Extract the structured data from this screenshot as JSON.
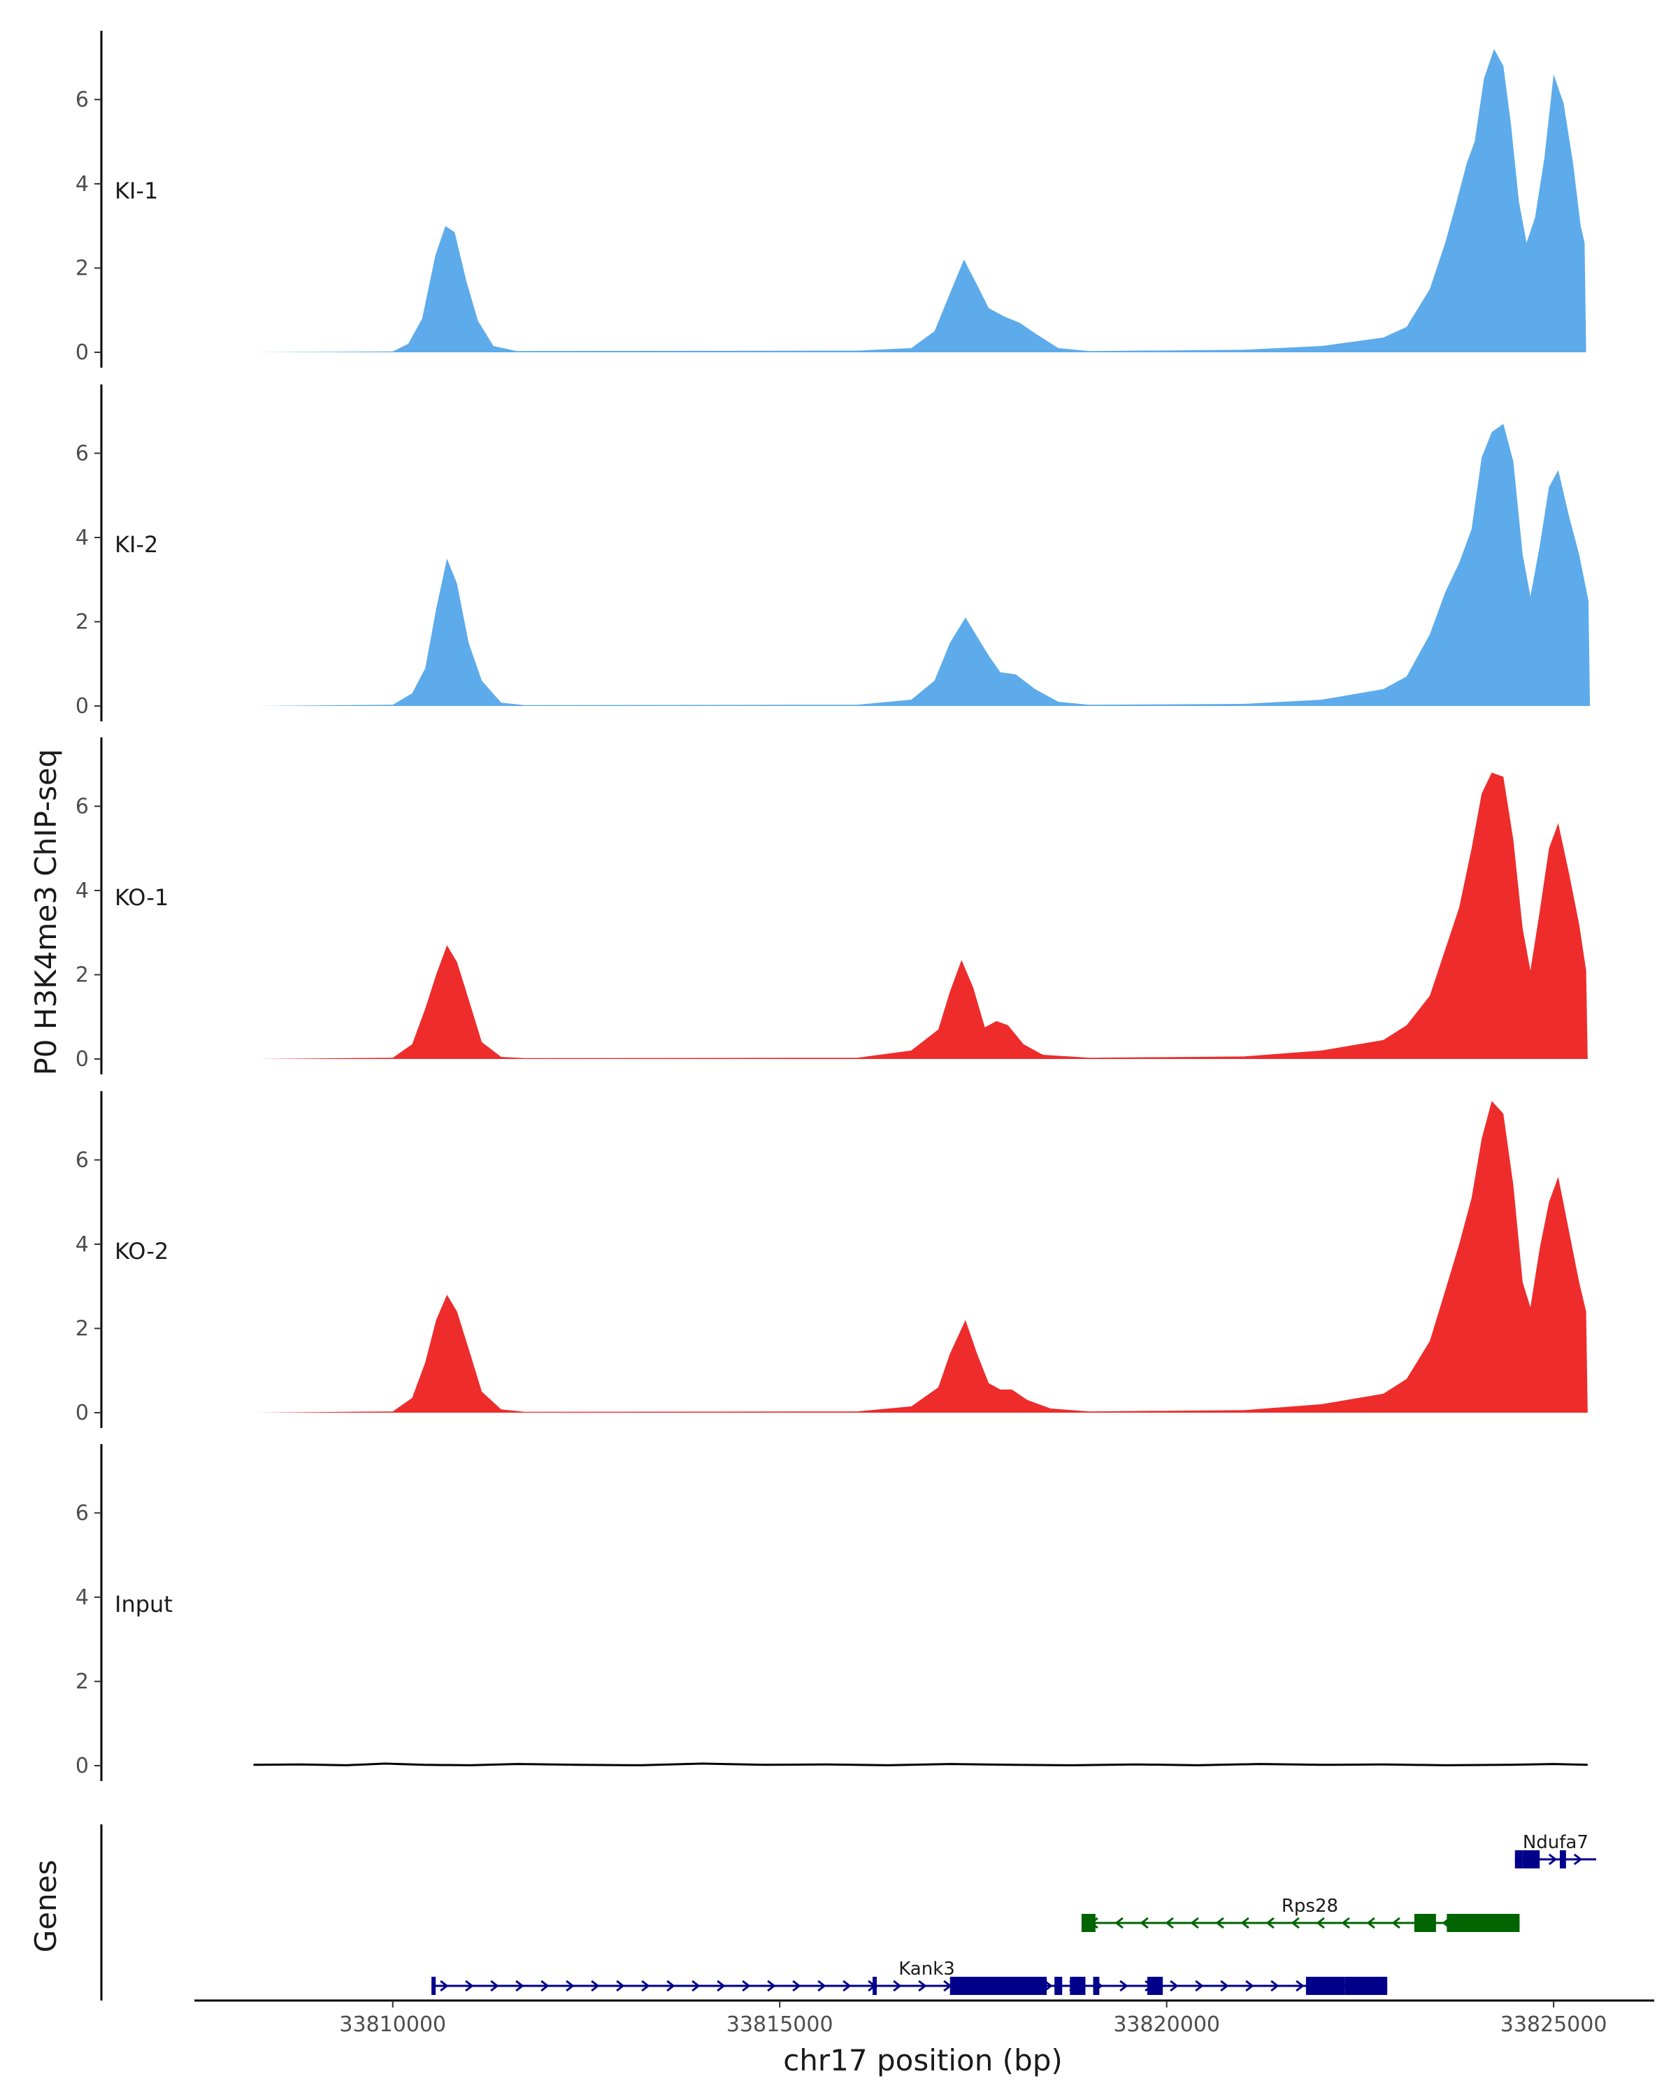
{
  "chart_data": {
    "type": "area",
    "ylabel": "P0 H3K4me3 ChIP-seq",
    "xlabel": "chr17 position (bp)",
    "xlim": [
      33807400,
      33826300
    ],
    "x_ticks": [
      33810000,
      33815000,
      33820000,
      33825000
    ],
    "x_tick_labels": [
      "33810000",
      "33815000",
      "33820000",
      "33825000"
    ],
    "ylim": [
      0,
      7.6
    ],
    "y_ticks": [
      0,
      2,
      4,
      6
    ],
    "y_tick_labels": [
      "0",
      "2",
      "4",
      "6"
    ],
    "colors": {
      "KI": "#5dabeb",
      "KO": "#ee2c2c",
      "Input": "#000000",
      "gene_plus": "#00008b",
      "gene_minus": "#006400"
    },
    "tracks": [
      {
        "name": "KI-1",
        "color": "#5dabeb",
        "points": [
          [
            33808200,
            0
          ],
          [
            33810000,
            0.02
          ],
          [
            33810200,
            0.2
          ],
          [
            33810380,
            0.8
          ],
          [
            33810550,
            2.3
          ],
          [
            33810680,
            3.0
          ],
          [
            33810800,
            2.85
          ],
          [
            33810950,
            1.7
          ],
          [
            33811100,
            0.75
          ],
          [
            33811300,
            0.15
          ],
          [
            33811600,
            0.03
          ],
          [
            33816000,
            0.04
          ],
          [
            33816700,
            0.1
          ],
          [
            33817000,
            0.5
          ],
          [
            33817200,
            1.4
          ],
          [
            33817380,
            2.2
          ],
          [
            33817550,
            1.6
          ],
          [
            33817700,
            1.05
          ],
          [
            33817900,
            0.85
          ],
          [
            33818100,
            0.7
          ],
          [
            33818300,
            0.45
          ],
          [
            33818600,
            0.1
          ],
          [
            33819000,
            0.03
          ],
          [
            33821000,
            0.06
          ],
          [
            33822000,
            0.15
          ],
          [
            33822800,
            0.35
          ],
          [
            33823100,
            0.6
          ],
          [
            33823400,
            1.5
          ],
          [
            33823600,
            2.6
          ],
          [
            33823750,
            3.6
          ],
          [
            33823880,
            4.5
          ],
          [
            33823980,
            5.0
          ],
          [
            33824100,
            6.5
          ],
          [
            33824230,
            7.2
          ],
          [
            33824350,
            6.8
          ],
          [
            33824450,
            5.4
          ],
          [
            33824550,
            3.6
          ],
          [
            33824650,
            2.6
          ],
          [
            33824760,
            3.2
          ],
          [
            33824880,
            4.6
          ],
          [
            33825000,
            6.6
          ],
          [
            33825130,
            5.9
          ],
          [
            33825250,
            4.5
          ],
          [
            33825350,
            3.0
          ],
          [
            33825400,
            2.6
          ],
          [
            33825420,
            0
          ]
        ]
      },
      {
        "name": "KI-2",
        "color": "#5dabeb",
        "points": [
          [
            33808200,
            0
          ],
          [
            33810000,
            0.03
          ],
          [
            33810250,
            0.3
          ],
          [
            33810420,
            0.9
          ],
          [
            33810560,
            2.3
          ],
          [
            33810700,
            3.5
          ],
          [
            33810830,
            2.9
          ],
          [
            33810980,
            1.5
          ],
          [
            33811150,
            0.6
          ],
          [
            33811400,
            0.08
          ],
          [
            33811700,
            0.02
          ],
          [
            33816000,
            0.03
          ],
          [
            33816700,
            0.15
          ],
          [
            33817000,
            0.6
          ],
          [
            33817200,
            1.5
          ],
          [
            33817400,
            2.1
          ],
          [
            33817550,
            1.65
          ],
          [
            33817700,
            1.2
          ],
          [
            33817850,
            0.8
          ],
          [
            33818050,
            0.75
          ],
          [
            33818300,
            0.4
          ],
          [
            33818600,
            0.1
          ],
          [
            33819000,
            0.03
          ],
          [
            33821000,
            0.05
          ],
          [
            33822000,
            0.15
          ],
          [
            33822800,
            0.4
          ],
          [
            33823100,
            0.7
          ],
          [
            33823400,
            1.7
          ],
          [
            33823600,
            2.7
          ],
          [
            33823780,
            3.4
          ],
          [
            33823940,
            4.2
          ],
          [
            33824070,
            5.9
          ],
          [
            33824200,
            6.5
          ],
          [
            33824350,
            6.7
          ],
          [
            33824480,
            5.8
          ],
          [
            33824600,
            3.6
          ],
          [
            33824700,
            2.6
          ],
          [
            33824820,
            3.8
          ],
          [
            33824940,
            5.2
          ],
          [
            33825060,
            5.6
          ],
          [
            33825200,
            4.5
          ],
          [
            33825330,
            3.6
          ],
          [
            33825450,
            2.5
          ],
          [
            33825470,
            0
          ]
        ]
      },
      {
        "name": "KO-1",
        "color": "#ee2c2c",
        "points": [
          [
            33808200,
            0
          ],
          [
            33810000,
            0.03
          ],
          [
            33810250,
            0.35
          ],
          [
            33810420,
            1.2
          ],
          [
            33810560,
            2.0
          ],
          [
            33810700,
            2.7
          ],
          [
            33810830,
            2.3
          ],
          [
            33811000,
            1.3
          ],
          [
            33811150,
            0.4
          ],
          [
            33811400,
            0.05
          ],
          [
            33811700,
            0.02
          ],
          [
            33816000,
            0.03
          ],
          [
            33816700,
            0.2
          ],
          [
            33817050,
            0.7
          ],
          [
            33817200,
            1.6
          ],
          [
            33817350,
            2.35
          ],
          [
            33817500,
            1.7
          ],
          [
            33817650,
            0.75
          ],
          [
            33817800,
            0.9
          ],
          [
            33817950,
            0.8
          ],
          [
            33818150,
            0.35
          ],
          [
            33818400,
            0.1
          ],
          [
            33819000,
            0.03
          ],
          [
            33821000,
            0.06
          ],
          [
            33822000,
            0.2
          ],
          [
            33822800,
            0.45
          ],
          [
            33823100,
            0.8
          ],
          [
            33823400,
            1.5
          ],
          [
            33823600,
            2.6
          ],
          [
            33823780,
            3.6
          ],
          [
            33823940,
            5.0
          ],
          [
            33824070,
            6.3
          ],
          [
            33824200,
            6.8
          ],
          [
            33824350,
            6.7
          ],
          [
            33824480,
            5.2
          ],
          [
            33824600,
            3.1
          ],
          [
            33824700,
            2.1
          ],
          [
            33824820,
            3.5
          ],
          [
            33824940,
            5.0
          ],
          [
            33825060,
            5.6
          ],
          [
            33825200,
            4.4
          ],
          [
            33825330,
            3.2
          ],
          [
            33825420,
            2.1
          ],
          [
            33825440,
            0
          ]
        ]
      },
      {
        "name": "KO-2",
        "color": "#ee2c2c",
        "points": [
          [
            33808200,
            0
          ],
          [
            33810000,
            0.03
          ],
          [
            33810250,
            0.35
          ],
          [
            33810420,
            1.2
          ],
          [
            33810560,
            2.2
          ],
          [
            33810700,
            2.8
          ],
          [
            33810830,
            2.4
          ],
          [
            33811000,
            1.4
          ],
          [
            33811150,
            0.5
          ],
          [
            33811400,
            0.08
          ],
          [
            33811700,
            0.02
          ],
          [
            33816000,
            0.03
          ],
          [
            33816700,
            0.15
          ],
          [
            33817050,
            0.6
          ],
          [
            33817200,
            1.4
          ],
          [
            33817400,
            2.2
          ],
          [
            33817550,
            1.4
          ],
          [
            33817700,
            0.7
          ],
          [
            33817850,
            0.55
          ],
          [
            33818000,
            0.55
          ],
          [
            33818200,
            0.3
          ],
          [
            33818500,
            0.1
          ],
          [
            33819000,
            0.03
          ],
          [
            33821000,
            0.06
          ],
          [
            33822000,
            0.2
          ],
          [
            33822800,
            0.45
          ],
          [
            33823100,
            0.8
          ],
          [
            33823400,
            1.7
          ],
          [
            33823600,
            2.9
          ],
          [
            33823780,
            4.0
          ],
          [
            33823940,
            5.1
          ],
          [
            33824070,
            6.5
          ],
          [
            33824200,
            7.4
          ],
          [
            33824350,
            7.1
          ],
          [
            33824480,
            5.4
          ],
          [
            33824600,
            3.1
          ],
          [
            33824700,
            2.5
          ],
          [
            33824820,
            3.9
          ],
          [
            33824940,
            5.0
          ],
          [
            33825060,
            5.6
          ],
          [
            33825200,
            4.3
          ],
          [
            33825330,
            3.1
          ],
          [
            33825420,
            2.4
          ],
          [
            33825440,
            0
          ]
        ]
      },
      {
        "name": "Input",
        "color": "#000000",
        "points": [
          [
            33808200,
            0.02
          ],
          [
            33808800,
            0.03
          ],
          [
            33809400,
            0.01
          ],
          [
            33809900,
            0.05
          ],
          [
            33810400,
            0.02
          ],
          [
            33811000,
            0.01
          ],
          [
            33811600,
            0.04
          ],
          [
            33812400,
            0.02
          ],
          [
            33813200,
            0.01
          ],
          [
            33814000,
            0.05
          ],
          [
            33814800,
            0.02
          ],
          [
            33815600,
            0.03
          ],
          [
            33816400,
            0.01
          ],
          [
            33817200,
            0.04
          ],
          [
            33818000,
            0.02
          ],
          [
            33818800,
            0.01
          ],
          [
            33819600,
            0.03
          ],
          [
            33820400,
            0.01
          ],
          [
            33821200,
            0.04
          ],
          [
            33822000,
            0.02
          ],
          [
            33822800,
            0.03
          ],
          [
            33823600,
            0.01
          ],
          [
            33824400,
            0.02
          ],
          [
            33825000,
            0.04
          ],
          [
            33825440,
            0.02
          ]
        ]
      }
    ],
    "genes_track_label": "Genes",
    "genes": [
      {
        "name": "Ndufa7",
        "strand": "+",
        "color": "#00008b",
        "row": 1,
        "start": 33824500,
        "end": 33825550,
        "exons": [
          [
            33824500,
            33824600
          ],
          [
            33824600,
            33824820
          ],
          [
            33825080,
            33825160
          ]
        ]
      },
      {
        "name": "Rps28",
        "strand": "-",
        "color": "#006400",
        "row": 2,
        "start": 33818900,
        "end": 33824560,
        "exons": [
          [
            33818900,
            33819080
          ],
          [
            33823200,
            33823480
          ],
          [
            33823620,
            33824380
          ],
          [
            33824380,
            33824560
          ]
        ]
      },
      {
        "name": "Kank3",
        "strand": "+",
        "color": "#00008b",
        "row": 3,
        "start": 33810500,
        "end": 33822850,
        "exons": [
          [
            33810500,
            33810520
          ],
          [
            33816200,
            33816240
          ],
          [
            33817200,
            33818450
          ],
          [
            33818550,
            33818650
          ],
          [
            33818750,
            33818950
          ],
          [
            33819050,
            33819130
          ],
          [
            33819750,
            33819950
          ],
          [
            33821800,
            33822300
          ],
          [
            33822300,
            33822850
          ]
        ]
      }
    ]
  }
}
